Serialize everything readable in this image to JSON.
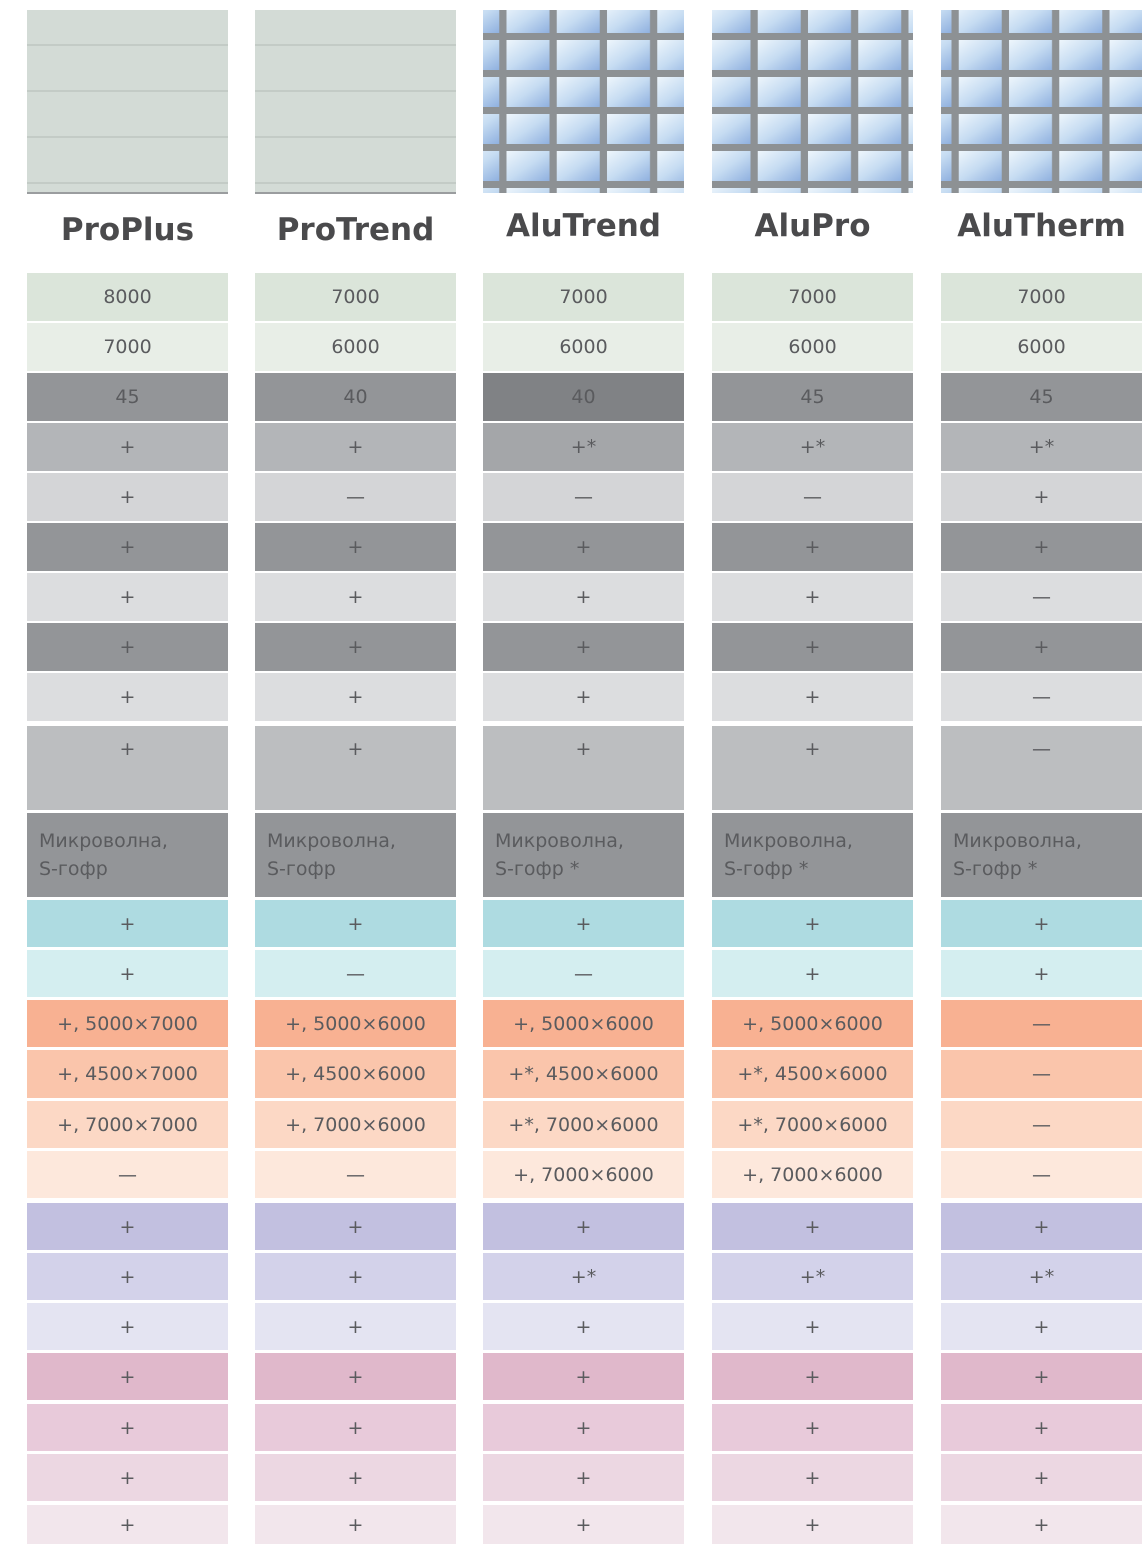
{
  "columns": [
    {
      "name": "ProPlus",
      "cells": [
        "8000",
        "7000",
        "45",
        "+",
        "+",
        "+",
        "+",
        "+",
        "+",
        "+",
        [
          "Микроволна,",
          "S-гофр"
        ],
        "+",
        "+",
        "+, 5000×7000",
        "+, 4500×7000",
        "+, 7000×7000",
        "—",
        "+",
        "+",
        "+",
        "+",
        "+",
        "+",
        "+"
      ]
    },
    {
      "name": "ProTrend",
      "cells": [
        "7000",
        "6000",
        "40",
        "+",
        "—",
        "+",
        "+",
        "+",
        "+",
        "+",
        [
          "Микроволна,",
          "S-гофр"
        ],
        "+",
        "—",
        "+, 5000×6000",
        "+, 4500×6000",
        "+, 7000×6000",
        "—",
        "+",
        "+",
        "+",
        "+",
        "+",
        "+",
        "+"
      ]
    },
    {
      "name": "AluTrend",
      "cells": [
        "7000",
        "6000",
        "40",
        "+*",
        "—",
        "+",
        "+",
        "+",
        "+",
        "+",
        [
          "Микроволна,",
          "S-гофр *"
        ],
        "+",
        "—",
        "+, 5000×6000",
        "+*, 4500×6000",
        "+*, 7000×6000",
        "+, 7000×6000",
        "+",
        "+*",
        "+",
        "+",
        "+",
        "+",
        "+"
      ]
    },
    {
      "name": "AluPro",
      "cells": [
        "7000",
        "6000",
        "45",
        "+*",
        "—",
        "+",
        "+",
        "+",
        "+",
        "+",
        [
          "Микроволна,",
          "S-гофр *"
        ],
        "+",
        "+",
        "+, 5000×6000",
        "+*, 4500×6000",
        "+*, 7000×6000",
        "+, 7000×6000",
        "+",
        "+*",
        "+",
        "+",
        "+",
        "+",
        "+"
      ]
    },
    {
      "name": "AluTherm",
      "cells": [
        "7000",
        "6000",
        "45",
        "+*",
        "+",
        "+",
        "—",
        "+",
        "—",
        "—",
        [
          "Микроволна,",
          "S-гофр *"
        ],
        "+",
        "+",
        "—",
        "—",
        "—",
        "—",
        "+",
        "+*",
        "+",
        "+",
        "+",
        "+",
        "+"
      ]
    }
  ]
}
